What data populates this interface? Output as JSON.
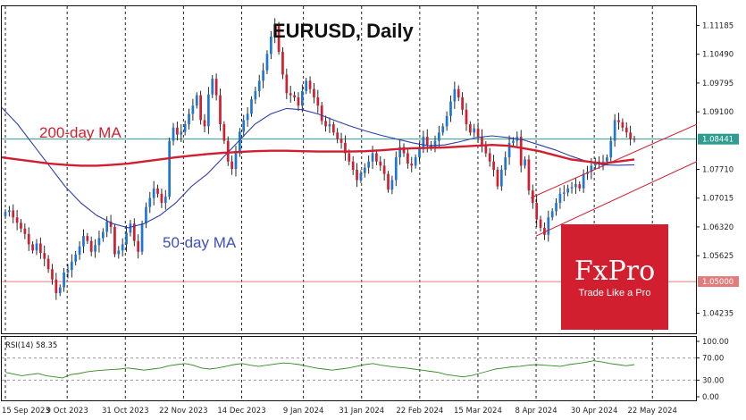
{
  "title": "EURUSD, Daily",
  "annotations": {
    "ma200": "200-day MA",
    "ma50": "50-day MA",
    "rsi_label": "RSI(14) 58.35"
  },
  "logo": {
    "brand": "FxPro",
    "tagline": "Trade Like a Pro"
  },
  "colors": {
    "bull": "#1f77d4",
    "bear": "#d11f2f",
    "ma200": "#d11f2f",
    "ma50": "#2d3ea8",
    "rsi": "#2e8b1e",
    "logo_bg": "#d11f2f",
    "hline_price": "#2e9c90",
    "hline_level": "#e47b7b",
    "channel": "#d11f2f"
  },
  "chart_data": {
    "type": "candlestick",
    "price_axis_ticks": [
      "1.11185",
      "1.10490",
      "1.09795",
      "1.09100",
      "1.08441",
      "1.07710",
      "1.07015",
      "1.06320",
      "1.05625",
      "1.05000",
      "1.04235"
    ],
    "price_range": [
      1.0375,
      1.1165
    ],
    "x_tick_labels": [
      "15 Sep 2023",
      "9 Oct 2023",
      "31 Oct 2023",
      "22 Nov 2023",
      "14 Dec 2023",
      "9 Jan 2024",
      "31 Jan 2024",
      "22 Feb 2024",
      "15 Mar 2024",
      "8 Apr 2024",
      "30 Apr 2024",
      "22 May 2024"
    ],
    "x_tick_index": [
      0,
      17,
      33,
      49,
      65,
      82,
      98,
      114,
      130,
      146,
      162,
      178
    ],
    "total_bars": 190,
    "current_price_label": "1.08441",
    "current_price": 1.08441,
    "level_label": "1.05000",
    "level": 1.05,
    "closes": [
      1.0668,
      1.0672,
      1.0655,
      1.0642,
      1.0628,
      1.0615,
      1.059,
      1.0575,
      1.0592,
      1.0569,
      1.0555,
      1.053,
      1.0505,
      1.0472,
      1.0486,
      1.0522,
      1.0528,
      1.0548,
      1.0565,
      1.0585,
      1.061,
      1.0598,
      1.0572,
      1.0588,
      1.0605,
      1.062,
      1.0645,
      1.0632,
      1.0566,
      1.0575,
      1.059,
      1.0618,
      1.064,
      1.0598,
      1.0572,
      1.064,
      1.068,
      1.0702,
      1.0725,
      1.0712,
      1.069,
      1.0705,
      1.084,
      1.0872,
      1.0855,
      1.0862,
      1.088,
      1.0905,
      1.0925,
      1.095,
      1.089,
      1.0875,
      1.0952,
      1.099,
      1.095,
      1.088,
      1.084,
      1.079,
      1.0772,
      1.081,
      1.0862,
      1.089,
      1.0905,
      1.094,
      1.096,
      1.0985,
      1.101,
      1.105,
      1.1092,
      1.112,
      1.1055,
      1.1,
      1.0955,
      1.095,
      1.0945,
      1.0925,
      1.096,
      1.0985,
      1.0965,
      1.0945,
      1.0925,
      1.0888,
      1.0875,
      1.088,
      1.086,
      1.0845,
      1.0835,
      1.081,
      1.079,
      1.077,
      1.0745,
      1.0762,
      1.0775,
      1.079,
      1.081,
      1.079,
      1.078,
      1.076,
      1.0722,
      1.0745,
      1.08,
      1.0825,
      1.081,
      1.0785,
      1.078,
      1.08,
      1.0825,
      1.085,
      1.083,
      1.0825,
      1.084,
      1.086,
      1.0875,
      1.09,
      1.0935,
      1.0965,
      1.0945,
      1.0915,
      1.088,
      1.086,
      1.087,
      1.085,
      1.083,
      1.081,
      1.079,
      1.077,
      1.073,
      1.077,
      1.08,
      1.0835,
      1.084,
      1.085,
      1.078,
      1.0795,
      1.072,
      1.069,
      1.065,
      1.063,
      1.0613,
      1.0655,
      1.067,
      1.069,
      1.0712,
      1.0715,
      1.0725,
      1.0728,
      1.0735,
      1.0725,
      1.076,
      1.0765,
      1.078,
      1.079,
      1.0785,
      1.079,
      1.08,
      1.084,
      1.089,
      1.0885,
      1.0872,
      1.086,
      1.0845,
      1.0843
    ],
    "ma200_approx": [
      1.08,
      1.0795,
      1.079,
      1.0785,
      1.0782,
      1.078,
      1.078,
      1.0782,
      1.0785,
      1.079,
      1.0795,
      1.08,
      1.0804,
      1.0808,
      1.0811,
      1.0813,
      1.0815,
      1.0816,
      1.0816,
      1.0815,
      1.0814,
      1.0814,
      1.0814,
      1.0815,
      1.0817,
      1.082,
      1.0822,
      1.0823,
      1.0824,
      1.0826,
      1.0828,
      1.083,
      1.0828,
      1.0822,
      1.0815,
      1.0805,
      1.0795,
      1.079,
      1.0785,
      1.079,
      1.0795
    ],
    "ma50_approx": [
      1.092,
      1.088,
      1.083,
      1.078,
      1.073,
      1.069,
      1.066,
      1.064,
      1.063,
      1.064,
      1.066,
      1.069,
      1.073,
      1.076,
      1.08,
      1.084,
      1.088,
      1.0905,
      1.0918,
      1.0915,
      1.0905,
      1.089,
      1.0876,
      1.0864,
      1.0853,
      1.0844,
      1.0835,
      1.0828,
      1.083,
      1.0838,
      1.0848,
      1.0852,
      1.0848,
      1.0842,
      1.083,
      1.0818,
      1.0803,
      1.079,
      1.0782,
      1.0781,
      1.0782
    ],
    "rsi": {
      "label": "RSI(14) 58.35",
      "value": 58.35,
      "ticks": [
        "100.00",
        "70.00",
        "30.00",
        "0.00"
      ],
      "levels": [
        70,
        30
      ],
      "range": [
        0,
        100
      ],
      "values": [
        44,
        41,
        38,
        40,
        42,
        38,
        36,
        34,
        40,
        42,
        45,
        47,
        48,
        49,
        50,
        52,
        50,
        48,
        50,
        52,
        56,
        58,
        60,
        57,
        52,
        50,
        52,
        55,
        58,
        60,
        57,
        55,
        57,
        59,
        61,
        60,
        58,
        55,
        52,
        50,
        48,
        50,
        52,
        55,
        58,
        60,
        57,
        55,
        53,
        52,
        50,
        48,
        46,
        44,
        40,
        38,
        36,
        38,
        42,
        46,
        50,
        52,
        54,
        55,
        57,
        58,
        57,
        56,
        55,
        58,
        60,
        62,
        65,
        63,
        60,
        58,
        56,
        58
      ]
    }
  }
}
